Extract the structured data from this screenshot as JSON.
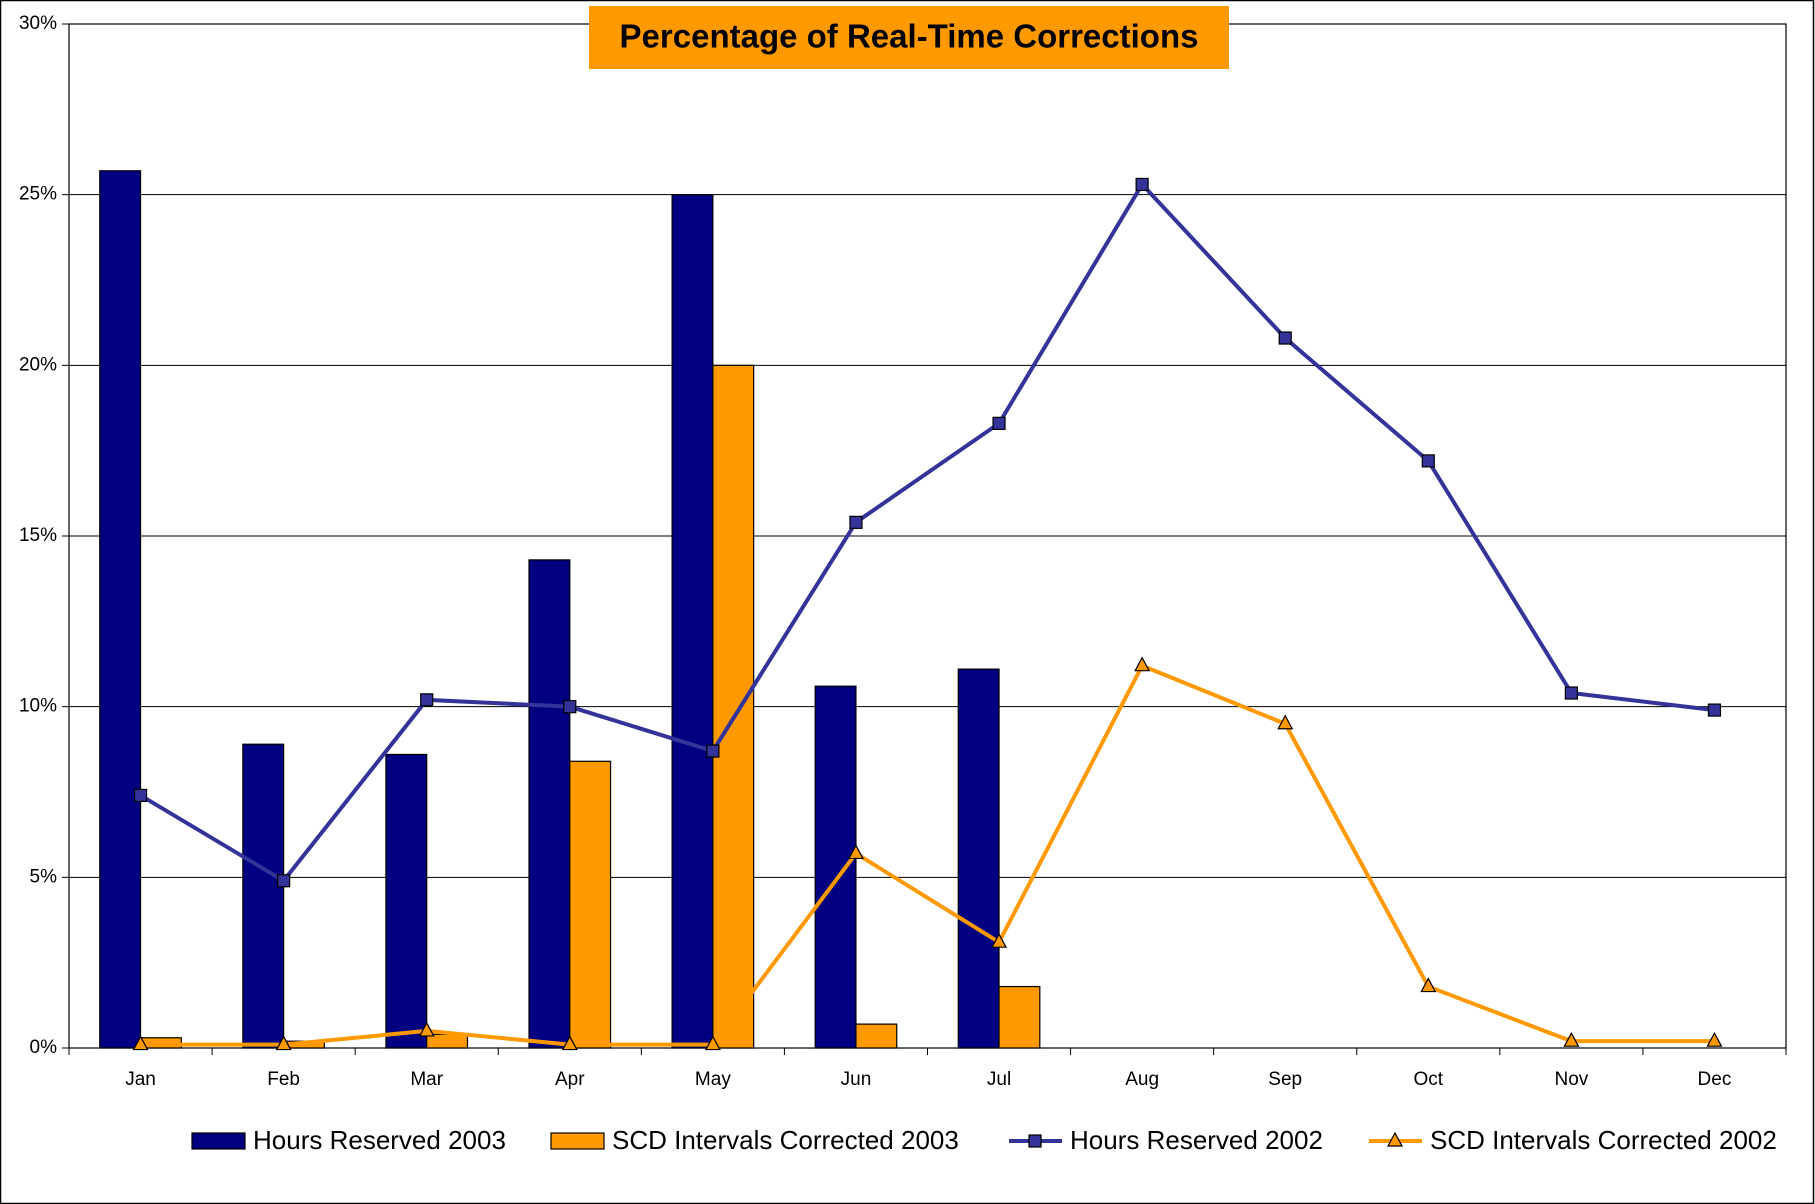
{
  "chart_data": {
    "type": "bar",
    "title": "Percentage of Real-Time Corrections",
    "categories": [
      "Jan",
      "Feb",
      "Mar",
      "Apr",
      "May",
      "Jun",
      "Jul",
      "Aug",
      "Sep",
      "Oct",
      "Nov",
      "Dec"
    ],
    "series": [
      {
        "name": "Hours Reserved 2003",
        "type": "bar",
        "color": "#000080",
        "values": [
          25.7,
          8.9,
          8.6,
          14.3,
          25.0,
          10.6,
          11.1,
          null,
          null,
          null,
          null,
          null
        ]
      },
      {
        "name": "SCD Intervals Corrected 2003",
        "type": "bar",
        "color": "#ff9900",
        "values": [
          0.3,
          0.2,
          0.4,
          8.4,
          20.0,
          0.7,
          1.8,
          null,
          null,
          null,
          null,
          null
        ]
      },
      {
        "name": "Hours Reserved 2002",
        "type": "line",
        "marker": "square",
        "color": "#333399",
        "values": [
          7.4,
          4.9,
          10.2,
          10.0,
          8.7,
          15.4,
          18.3,
          25.3,
          20.8,
          17.2,
          10.4,
          9.9
        ]
      },
      {
        "name": "SCD Intervals Corrected 2002",
        "type": "line",
        "marker": "triangle",
        "color": "#ff9900",
        "values": [
          0.1,
          0.1,
          0.5,
          0.1,
          0.1,
          5.7,
          3.1,
          11.2,
          9.5,
          1.8,
          0.2,
          0.2
        ]
      }
    ],
    "ylim": [
      0,
      30
    ],
    "yticks": [
      {
        "value": 0,
        "label": "0%"
      },
      {
        "value": 5,
        "label": "5%"
      },
      {
        "value": 10,
        "label": "10%"
      },
      {
        "value": 15,
        "label": "15%"
      },
      {
        "value": 20,
        "label": "20%"
      },
      {
        "value": 25,
        "label": "25%"
      },
      {
        "value": 30,
        "label": "30%"
      }
    ],
    "grid": true,
    "legend": "bottom"
  }
}
